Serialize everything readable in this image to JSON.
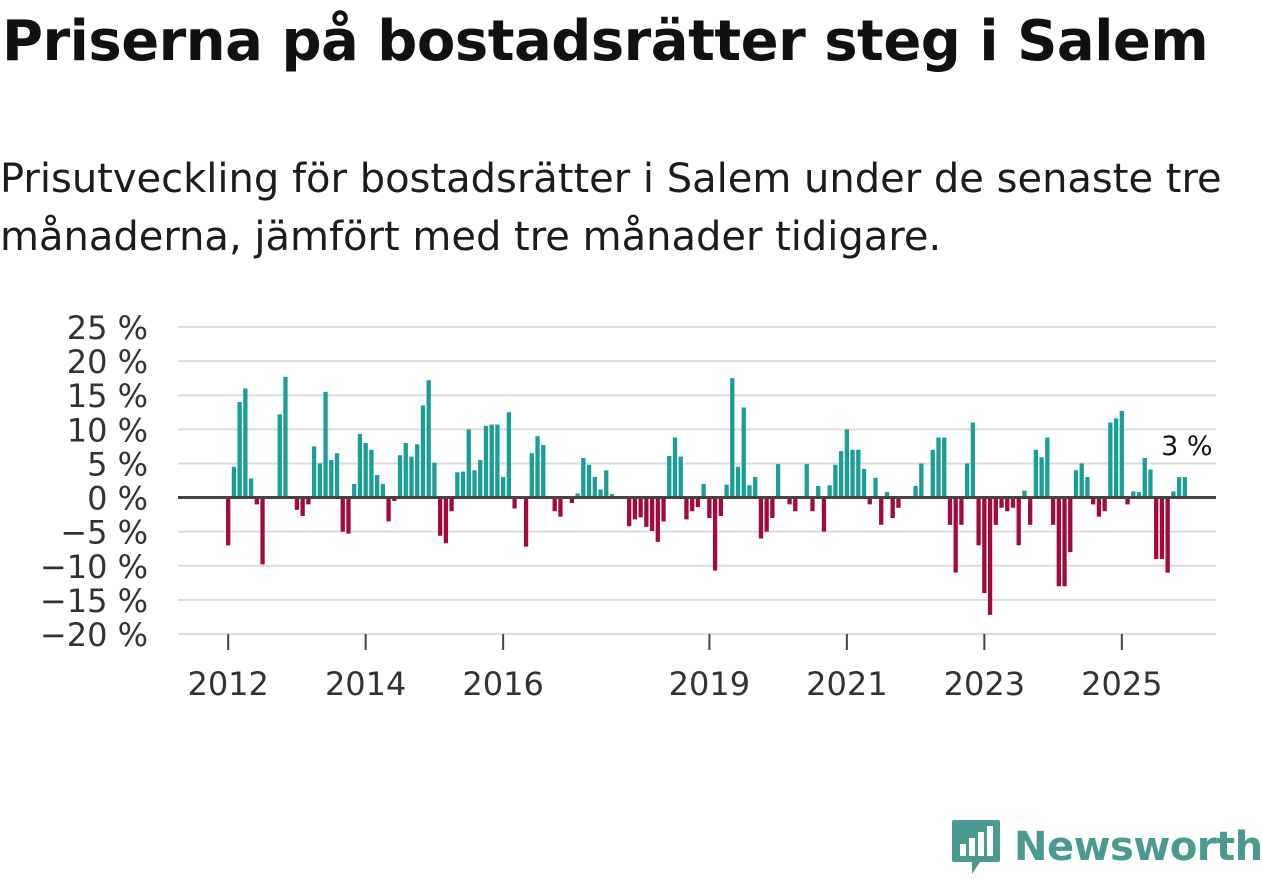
{
  "header": {
    "title": "Priserna på bostadsrätter steg i Salem",
    "subtitle": "Prisutveckling för bostadsrätter i Salem under de senaste tre månaderna, jämfört med tre månader tidigare."
  },
  "brand": {
    "name": "Newsworthy",
    "color": "#4a9a91",
    "icon": "newsworthy-logo-icon"
  },
  "colors": {
    "positive": "#1a9e95",
    "negative": "#a3093f",
    "grid": "#dddddd",
    "zero": "#444444",
    "text": "#333333"
  },
  "chart_data": {
    "type": "bar",
    "title": "Priserna på bostadsrätter steg i Salem",
    "ylabel": "",
    "xlabel": "",
    "ylim": [
      -20,
      25
    ],
    "x_range": [
      2011.27,
      2026.37
    ],
    "yticks": [
      -20,
      -15,
      -10,
      -5,
      0,
      5,
      10,
      15,
      20,
      25
    ],
    "ytick_labels": [
      "−20 %",
      "−15 %",
      "−10 %",
      "−5 %",
      "0 %",
      "5 %",
      "10 %",
      "15 %",
      "20 %",
      "25 %"
    ],
    "xticks": [
      2012,
      2014,
      2016,
      2019,
      2021,
      2023,
      2025
    ],
    "xtick_labels": [
      "2012",
      "2014",
      "2016",
      "2019",
      "2021",
      "2023",
      "2025"
    ],
    "grid": true,
    "annotation": {
      "text": "3 %",
      "label": "latest value"
    },
    "start": "2012-01",
    "frequency": "monthly",
    "values": [
      -7,
      4.5,
      14,
      16,
      2.8,
      -1,
      -9.8,
      0,
      0,
      12.2,
      17.7,
      0,
      -1.8,
      -2.7,
      -1,
      7.5,
      5,
      15.5,
      5.5,
      6.5,
      -5,
      -5.3,
      2,
      9.3,
      8,
      7,
      3.3,
      2,
      -3.5,
      -0.5,
      6.2,
      8,
      6,
      7.8,
      13.5,
      17.2,
      5.1,
      -5.6,
      -6.7,
      -2,
      3.7,
      3.8,
      10,
      4,
      5.5,
      10.5,
      10.7,
      10.7,
      3,
      12.5,
      -1.6,
      0,
      -7.2,
      6.5,
      9,
      7.7,
      0,
      -2,
      -2.8,
      0,
      -0.8,
      0.6,
      5.8,
      4.8,
      3,
      1.2,
      4,
      0.5,
      0,
      0,
      -4.2,
      -3.2,
      -2.9,
      -4.3,
      -4.9,
      -6.5,
      -3.5,
      6.1,
      8.8,
      6,
      -3.2,
      -2,
      -1.4,
      2,
      -3,
      -10.7,
      -2.7,
      1.9,
      17.5,
      4.5,
      13.2,
      1.8,
      3,
      -6,
      -5,
      -3,
      4.9,
      0,
      -1,
      -2,
      0,
      4.9,
      -2,
      1.7,
      -5,
      1.8,
      4.8,
      6.8,
      10,
      7,
      7,
      4.2,
      -1,
      2.9,
      -4,
      0.8,
      -3,
      -1.5,
      0,
      0,
      1.7,
      5,
      0,
      7,
      8.8,
      8.8,
      -4,
      -11,
      -4,
      5,
      11,
      -7,
      -14,
      -17.2,
      -4,
      -1.5,
      -2,
      -1.5,
      -7,
      1,
      -4,
      7,
      5.9,
      8.8,
      -4,
      -13,
      -13,
      -8,
      4,
      5,
      3,
      -1,
      -2.8,
      -2,
      11,
      11.6,
      12.7,
      -1,
      0.9,
      0.8,
      5.8,
      4.1,
      -9,
      -9,
      -11,
      0.9,
      3,
      3
    ]
  }
}
